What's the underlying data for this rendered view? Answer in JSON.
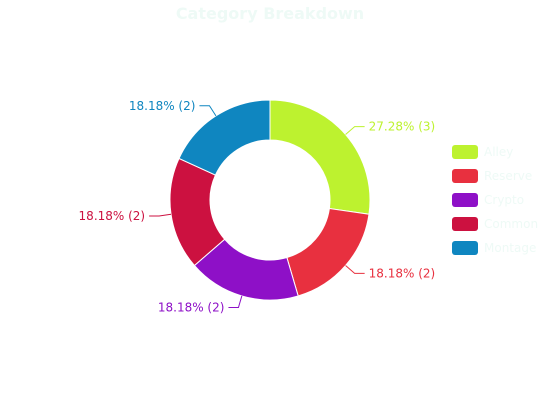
{
  "chart_data": {
    "type": "pie",
    "subtype": "donut",
    "title": "Category Breakdown",
    "title_color": "#eefaf6",
    "legend_position": "right",
    "legend_text_color": "#eefaf6",
    "slices": [
      {
        "name": "Alley",
        "value": 3,
        "label": "27.28% (3)",
        "color": "#bdf22f"
      },
      {
        "name": "Reserve",
        "value": 2,
        "label": "18.18% (2)",
        "color": "#e8303f"
      },
      {
        "name": "Crypto",
        "value": 2,
        "label": "18.18% (2)",
        "color": "#8e10c7"
      },
      {
        "name": "Common",
        "value": 2,
        "label": "18.18% (2)",
        "color": "#cc1140"
      },
      {
        "name": "Montage",
        "value": 2,
        "label": "18.18% (2)",
        "color": "#0f86c0"
      }
    ]
  }
}
